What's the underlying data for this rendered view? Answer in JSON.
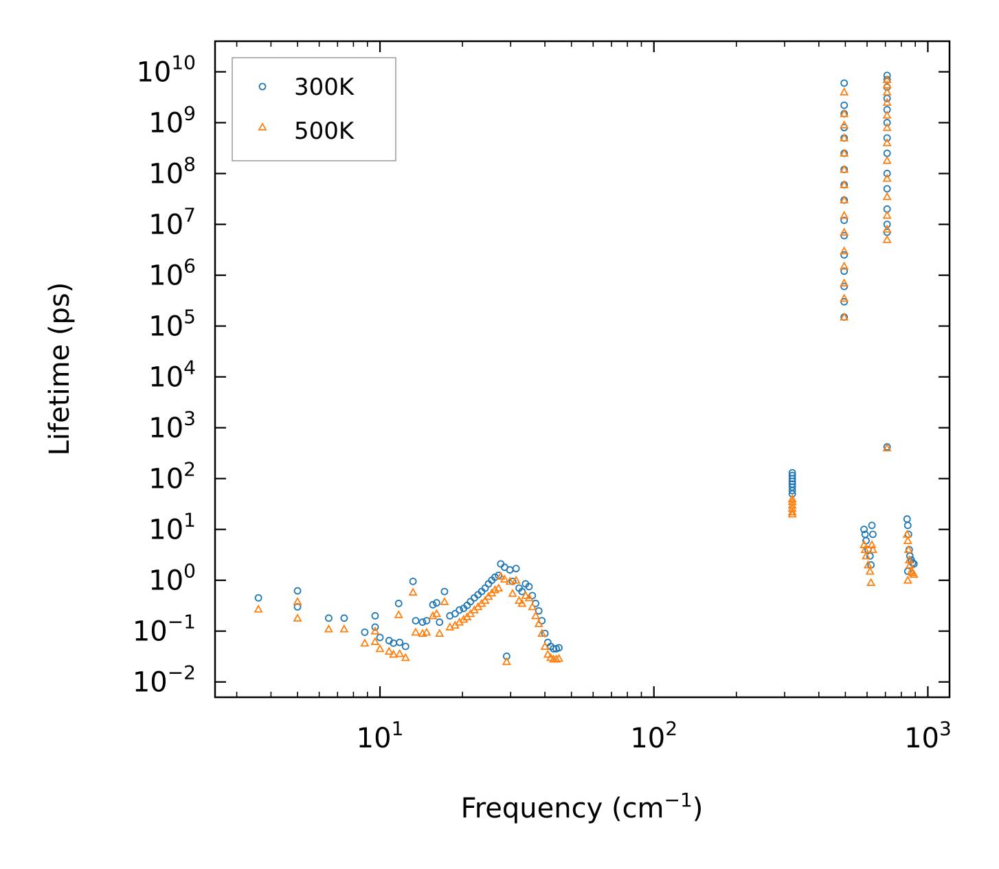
{
  "chart_data": {
    "type": "scatter",
    "title": "",
    "xlabel": {
      "text": "Frequency (cm",
      "sup": "−1",
      "suffix": ")"
    },
    "ylabel": "Lifetime (ps)",
    "xscale": "log",
    "yscale": "log",
    "xlim": [
      2.5,
      1200
    ],
    "ylim": [
      0.005,
      40000000000
    ],
    "x_ticks": [
      {
        "value": 10,
        "base": "10",
        "exp": "1"
      },
      {
        "value": 100,
        "base": "10",
        "exp": "2"
      },
      {
        "value": 1000,
        "base": "10",
        "exp": "3"
      }
    ],
    "y_ticks": [
      {
        "value": 0.01,
        "base": "10",
        "exp": "−2"
      },
      {
        "value": 0.1,
        "base": "10",
        "exp": "−1"
      },
      {
        "value": 1,
        "base": "10",
        "exp": "0"
      },
      {
        "value": 10,
        "base": "10",
        "exp": "1"
      },
      {
        "value": 100,
        "base": "10",
        "exp": "2"
      },
      {
        "value": 1000,
        "base": "10",
        "exp": "3"
      },
      {
        "value": 10000,
        "base": "10",
        "exp": "4"
      },
      {
        "value": 100000,
        "base": "10",
        "exp": "5"
      },
      {
        "value": 1000000,
        "base": "10",
        "exp": "6"
      },
      {
        "value": 10000000,
        "base": "10",
        "exp": "7"
      },
      {
        "value": 100000000,
        "base": "10",
        "exp": "8"
      },
      {
        "value": 1000000000,
        "base": "10",
        "exp": "9"
      },
      {
        "value": 10000000000,
        "base": "10",
        "exp": "10"
      }
    ],
    "legend": {
      "position": "top-left"
    },
    "series": [
      {
        "name": "300K",
        "marker": "circle",
        "color": "#1f77b4",
        "points": [
          [
            3.6,
            0.45
          ],
          [
            5.0,
            0.62
          ],
          [
            5.0,
            0.3
          ],
          [
            6.5,
            0.18
          ],
          [
            7.4,
            0.18
          ],
          [
            8.8,
            0.095
          ],
          [
            9.6,
            0.2
          ],
          [
            9.6,
            0.12
          ],
          [
            10.0,
            0.075
          ],
          [
            10.8,
            0.065
          ],
          [
            11.2,
            0.058
          ],
          [
            11.7,
            0.35
          ],
          [
            11.8,
            0.06
          ],
          [
            12.4,
            0.05
          ],
          [
            13.2,
            0.95
          ],
          [
            13.5,
            0.16
          ],
          [
            14.3,
            0.15
          ],
          [
            14.8,
            0.16
          ],
          [
            15.6,
            0.33
          ],
          [
            16.1,
            0.36
          ],
          [
            16.5,
            0.15
          ],
          [
            17.2,
            0.6
          ],
          [
            18.0,
            0.2
          ],
          [
            18.8,
            0.22
          ],
          [
            19.5,
            0.26
          ],
          [
            20.2,
            0.28
          ],
          [
            20.8,
            0.32
          ],
          [
            21.4,
            0.38
          ],
          [
            22.1,
            0.45
          ],
          [
            22.8,
            0.52
          ],
          [
            23.5,
            0.6
          ],
          [
            24.2,
            0.7
          ],
          [
            24.9,
            0.85
          ],
          [
            25.6,
            1.0
          ],
          [
            26.3,
            1.15
          ],
          [
            27.1,
            1.25
          ],
          [
            27.6,
            2.1
          ],
          [
            28.5,
            1.8
          ],
          [
            29.0,
            0.032
          ],
          [
            29.8,
            1.6
          ],
          [
            30.5,
            0.95
          ],
          [
            31.4,
            1.7
          ],
          [
            32.2,
            0.7
          ],
          [
            33.0,
            0.6
          ],
          [
            34.0,
            0.85
          ],
          [
            35.0,
            0.75
          ],
          [
            36.0,
            0.5
          ],
          [
            37.0,
            0.35
          ],
          [
            38.0,
            0.25
          ],
          [
            39.0,
            0.16
          ],
          [
            40.0,
            0.09
          ],
          [
            41.0,
            0.06
          ],
          [
            42.0,
            0.05
          ],
          [
            43.0,
            0.045
          ],
          [
            44.0,
            0.045
          ],
          [
            45.0,
            0.047
          ],
          [
            320,
            130
          ],
          [
            320,
            115
          ],
          [
            320,
            100
          ],
          [
            320,
            88
          ],
          [
            320,
            78
          ],
          [
            320,
            68
          ],
          [
            320,
            58
          ],
          [
            320,
            50
          ],
          [
            495,
            6000000000
          ],
          [
            495,
            2200000000
          ],
          [
            495,
            1500000000
          ],
          [
            495,
            800000000
          ],
          [
            495,
            500000000
          ],
          [
            495,
            250000000
          ],
          [
            495,
            120000000
          ],
          [
            495,
            60000000
          ],
          [
            495,
            30000000
          ],
          [
            495,
            12000000
          ],
          [
            495,
            6000000
          ],
          [
            495,
            2500000
          ],
          [
            495,
            1200000
          ],
          [
            495,
            600000
          ],
          [
            495,
            300000
          ],
          [
            495,
            150000
          ],
          [
            710,
            8500000000
          ],
          [
            710,
            7000000000
          ],
          [
            710,
            5000000000
          ],
          [
            710,
            3000000000
          ],
          [
            710,
            1800000000
          ],
          [
            710,
            1000000000
          ],
          [
            710,
            500000000
          ],
          [
            710,
            250000000
          ],
          [
            710,
            100000000
          ],
          [
            710,
            50000000
          ],
          [
            710,
            20000000
          ],
          [
            710,
            10000000
          ],
          [
            710,
            7000000
          ],
          [
            710,
            420
          ],
          [
            585,
            10
          ],
          [
            590,
            8
          ],
          [
            595,
            6
          ],
          [
            605,
            4
          ],
          [
            615,
            3
          ],
          [
            625,
            12
          ],
          [
            630,
            8
          ],
          [
            620,
            2
          ],
          [
            840,
            16
          ],
          [
            845,
            12
          ],
          [
            850,
            8
          ],
          [
            855,
            4
          ],
          [
            860,
            3
          ],
          [
            870,
            2.5
          ],
          [
            880,
            2.2
          ],
          [
            890,
            2.1
          ],
          [
            845,
            1.5
          ]
        ]
      },
      {
        "name": "500K",
        "marker": "triangle",
        "color": "#ff7f0e",
        "points": [
          [
            3.6,
            0.27
          ],
          [
            5.0,
            0.38
          ],
          [
            5.0,
            0.18
          ],
          [
            6.5,
            0.11
          ],
          [
            7.4,
            0.11
          ],
          [
            8.8,
            0.058
          ],
          [
            9.6,
            0.1
          ],
          [
            9.6,
            0.062
          ],
          [
            10.0,
            0.045
          ],
          [
            10.8,
            0.04
          ],
          [
            11.2,
            0.035
          ],
          [
            11.7,
            0.21
          ],
          [
            11.8,
            0.036
          ],
          [
            12.4,
            0.03
          ],
          [
            13.2,
            0.58
          ],
          [
            13.5,
            0.095
          ],
          [
            14.3,
            0.09
          ],
          [
            14.8,
            0.095
          ],
          [
            15.6,
            0.2
          ],
          [
            16.1,
            0.22
          ],
          [
            16.5,
            0.09
          ],
          [
            17.2,
            0.38
          ],
          [
            18.0,
            0.12
          ],
          [
            18.8,
            0.13
          ],
          [
            19.5,
            0.15
          ],
          [
            20.2,
            0.17
          ],
          [
            20.8,
            0.19
          ],
          [
            21.4,
            0.22
          ],
          [
            22.1,
            0.26
          ],
          [
            22.8,
            0.3
          ],
          [
            23.5,
            0.35
          ],
          [
            24.2,
            0.4
          ],
          [
            24.9,
            0.48
          ],
          [
            25.6,
            0.56
          ],
          [
            26.3,
            0.65
          ],
          [
            27.1,
            0.7
          ],
          [
            27.6,
            1.2
          ],
          [
            28.5,
            1.05
          ],
          [
            29.0,
            0.025
          ],
          [
            29.8,
            0.95
          ],
          [
            30.5,
            0.55
          ],
          [
            31.4,
            1.0
          ],
          [
            32.2,
            0.4
          ],
          [
            33.0,
            0.35
          ],
          [
            34.0,
            0.5
          ],
          [
            35.0,
            0.45
          ],
          [
            36.0,
            0.3
          ],
          [
            37.0,
            0.2
          ],
          [
            38.0,
            0.14
          ],
          [
            39.0,
            0.09
          ],
          [
            40.0,
            0.05
          ],
          [
            41.0,
            0.035
          ],
          [
            42.0,
            0.03
          ],
          [
            43.0,
            0.028
          ],
          [
            44.0,
            0.028
          ],
          [
            45.0,
            0.029
          ],
          [
            320,
            40
          ],
          [
            320,
            35
          ],
          [
            320,
            30
          ],
          [
            320,
            26
          ],
          [
            320,
            22
          ],
          [
            320,
            20
          ],
          [
            495,
            4000000000
          ],
          [
            495,
            1500000000
          ],
          [
            495,
            900000000
          ],
          [
            495,
            500000000
          ],
          [
            495,
            250000000
          ],
          [
            495,
            120000000
          ],
          [
            495,
            60000000
          ],
          [
            495,
            30000000
          ],
          [
            495,
            15000000
          ],
          [
            495,
            7000000
          ],
          [
            495,
            3000000
          ],
          [
            495,
            1500000
          ],
          [
            495,
            700000
          ],
          [
            495,
            350000
          ],
          [
            495,
            150000
          ],
          [
            710,
            7000000000
          ],
          [
            710,
            5500000000
          ],
          [
            710,
            4000000000
          ],
          [
            710,
            2500000000
          ],
          [
            710,
            1400000000
          ],
          [
            710,
            800000000
          ],
          [
            710,
            400000000
          ],
          [
            710,
            180000000
          ],
          [
            710,
            80000000
          ],
          [
            710,
            35000000
          ],
          [
            710,
            15000000
          ],
          [
            710,
            8000000
          ],
          [
            710,
            5000000
          ],
          [
            710,
            400
          ],
          [
            585,
            5
          ],
          [
            590,
            4
          ],
          [
            595,
            3
          ],
          [
            605,
            2
          ],
          [
            615,
            1.5
          ],
          [
            625,
            5
          ],
          [
            630,
            4
          ],
          [
            620,
            0.9
          ],
          [
            840,
            8
          ],
          [
            845,
            6
          ],
          [
            850,
            4
          ],
          [
            855,
            2.5
          ],
          [
            860,
            2
          ],
          [
            870,
            1.5
          ],
          [
            880,
            1.4
          ],
          [
            890,
            1.3
          ],
          [
            845,
            1.0
          ]
        ]
      }
    ]
  }
}
